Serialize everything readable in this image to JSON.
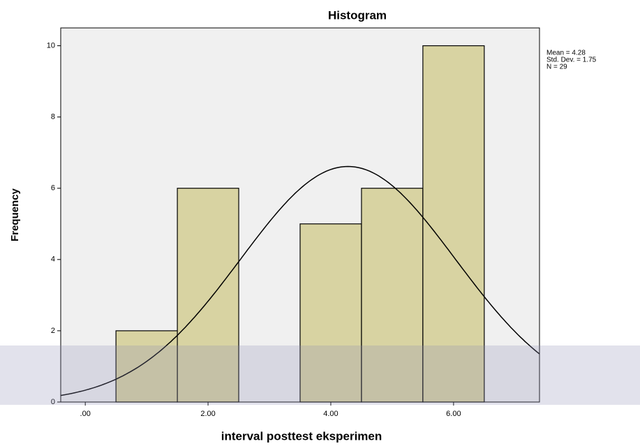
{
  "chart_data": {
    "type": "histogram",
    "title": "Histogram",
    "x_label": "interval posttest eksperimen",
    "y_label": "Frequency",
    "bins": [
      0.5,
      1.5,
      2.5,
      3.5,
      4.5,
      5.5,
      6.5
    ],
    "values": [
      2,
      6,
      0,
      5,
      6,
      10
    ],
    "color": "#d8d3a2",
    "xlim": [
      -0.4,
      7.4
    ],
    "ylim": [
      0,
      10.5
    ],
    "xticks": [
      {
        "value": 0,
        "label": ".00"
      },
      {
        "value": 2,
        "label": "2.00"
      },
      {
        "value": 4,
        "label": "4.00"
      },
      {
        "value": 6,
        "label": "6.00"
      }
    ],
    "yticks": [
      0,
      2,
      4,
      6,
      8,
      10
    ],
    "stats": [
      {
        "value": 4.28,
        "label": "Mean = 4.28"
      },
      {
        "value": 1.75,
        "label": "Std. Dev. = 1.75"
      },
      {
        "value": 29,
        "label": "N = 29"
      }
    ],
    "normal_curve": true
  }
}
